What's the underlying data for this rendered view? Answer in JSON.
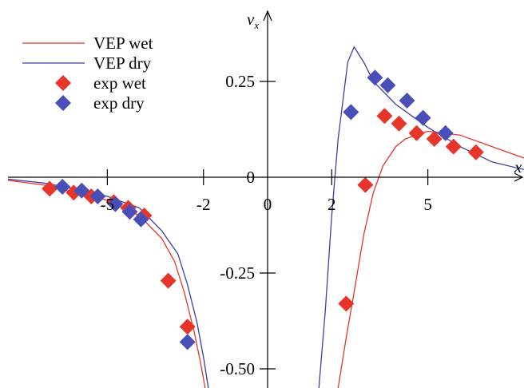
{
  "chart_data": {
    "type": "scatter",
    "xlabel": "x",
    "ylabel": "v",
    "ylabel_subscript": "x",
    "xlim": [
      -8.1,
      8.0
    ],
    "ylim": [
      -0.55,
      0.4
    ],
    "x_ticks": [
      {
        "value": -5,
        "label": "-5"
      },
      {
        "value": -2,
        "label": "-2"
      },
      {
        "value": 0,
        "label": "0"
      },
      {
        "value": 2,
        "label": "2"
      },
      {
        "value": 5,
        "label": "5"
      }
    ],
    "y_ticks": [
      {
        "value": 0.25,
        "label": "0.25"
      },
      {
        "value": 0,
        "label": "0"
      },
      {
        "value": -0.25,
        "label": "-0.25"
      },
      {
        "value": -0.5,
        "label": "-0.50"
      }
    ],
    "grid": false,
    "legend_position": "top-left",
    "series": [
      {
        "name": "VEP wet",
        "kind": "line",
        "color": "#e8352a",
        "segments": [
          [
            [
              -8.1,
              -0.008
            ],
            [
              -7,
              -0.02
            ],
            [
              -6,
              -0.04
            ],
            [
              -5,
              -0.06
            ],
            [
              -4,
              -0.1
            ],
            [
              -3.3,
              -0.16
            ],
            [
              -2.9,
              -0.22
            ],
            [
              -2.6,
              -0.3
            ],
            [
              -2.3,
              -0.4
            ],
            [
              -2.1,
              -0.48
            ],
            [
              -1.95,
              -0.55
            ]
          ],
          [
            [
              2.2,
              -0.55
            ],
            [
              2.45,
              -0.42
            ],
            [
              2.7,
              -0.3
            ],
            [
              3.0,
              -0.15
            ],
            [
              3.3,
              -0.04
            ],
            [
              3.6,
              0.03
            ],
            [
              4.0,
              0.08
            ],
            [
              4.3,
              0.1
            ],
            [
              5,
              0.12
            ],
            [
              6,
              0.11
            ],
            [
              7,
              0.08
            ],
            [
              8,
              0.05
            ]
          ]
        ]
      },
      {
        "name": "VEP dry",
        "kind": "line",
        "color": "#3a3fa6",
        "segments": [
          [
            [
              -8.1,
              -0.005
            ],
            [
              -7,
              -0.015
            ],
            [
              -6,
              -0.03
            ],
            [
              -5,
              -0.05
            ],
            [
              -4,
              -0.08
            ],
            [
              -3.3,
              -0.14
            ],
            [
              -2.8,
              -0.2
            ],
            [
              -2.5,
              -0.28
            ],
            [
              -2.2,
              -0.38
            ],
            [
              -2.0,
              -0.47
            ],
            [
              -1.85,
              -0.55
            ]
          ],
          [
            [
              1.6,
              -0.55
            ],
            [
              1.8,
              -0.35
            ],
            [
              2.0,
              -0.1
            ],
            [
              2.2,
              0.1
            ],
            [
              2.5,
              0.3
            ],
            [
              2.7,
              0.34
            ],
            [
              3.0,
              0.3
            ],
            [
              3.3,
              0.25
            ],
            [
              4,
              0.19
            ],
            [
              4.5,
              0.16
            ],
            [
              5,
              0.13
            ],
            [
              6,
              0.08
            ],
            [
              7,
              0.04
            ],
            [
              8,
              0.02
            ]
          ]
        ]
      },
      {
        "name": "exp wet",
        "kind": "marker",
        "color": "#e8352a",
        "points": [
          [
            -6.8,
            -0.03
          ],
          [
            -6.05,
            -0.04
          ],
          [
            -5.5,
            -0.05
          ],
          [
            -4.8,
            -0.065
          ],
          [
            -4.35,
            -0.08
          ],
          [
            -3.85,
            -0.1
          ],
          [
            -3.1,
            -0.27
          ],
          [
            -2.5,
            -0.39
          ],
          [
            2.45,
            -0.33
          ],
          [
            3.05,
            -0.02
          ],
          [
            3.65,
            0.16
          ],
          [
            4.1,
            0.14
          ],
          [
            4.65,
            0.115
          ],
          [
            5.2,
            0.1
          ],
          [
            5.8,
            0.08
          ],
          [
            6.5,
            0.065
          ]
        ]
      },
      {
        "name": "exp dry",
        "kind": "marker",
        "color": "#4a4fb8",
        "points": [
          [
            -6.4,
            -0.025
          ],
          [
            -5.8,
            -0.035
          ],
          [
            -5.3,
            -0.05
          ],
          [
            -4.75,
            -0.07
          ],
          [
            -4.3,
            -0.09
          ],
          [
            -3.95,
            -0.11
          ],
          [
            -2.5,
            -0.43
          ],
          [
            2.6,
            0.17
          ],
          [
            3.35,
            0.26
          ],
          [
            3.75,
            0.24
          ],
          [
            4.35,
            0.2
          ],
          [
            4.85,
            0.155
          ],
          [
            5.55,
            0.115
          ]
        ]
      }
    ]
  }
}
